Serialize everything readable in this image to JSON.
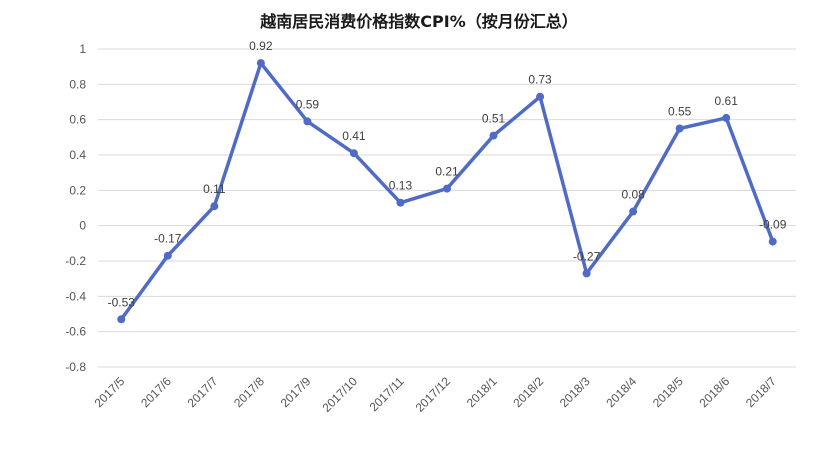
{
  "chart_data": {
    "type": "line",
    "title": "越南居民消费价格指数CPI%（按月份汇总）",
    "categories": [
      "2017/5",
      "2017/6",
      "2017/7",
      "2017/8",
      "2017/9",
      "2017/10",
      "2017/11",
      "2017/12",
      "2018/1",
      "2018/2",
      "2018/3",
      "2018/4",
      "2018/5",
      "2018/6",
      "2018/7"
    ],
    "series": [
      {
        "values": [
          -0.53,
          -0.17,
          0.11,
          0.92,
          0.59,
          0.41,
          0.13,
          0.21,
          0.51,
          0.73,
          -0.27,
          0.08,
          0.55,
          0.61,
          -0.09
        ],
        "labels": [
          "-0.53",
          "-0.17",
          "0.11",
          "0.92",
          "0.59",
          "0.41",
          "0.13",
          "0.21",
          "0.51",
          "0.73",
          "-0.27",
          "0.08",
          "0.55",
          "0.61",
          "-0.09"
        ]
      }
    ],
    "ylim": [
      -0.8,
      1
    ],
    "yticks": [
      "1",
      "0.8",
      "0.6",
      "0.4",
      "0.2",
      "0",
      "-0.2",
      "-0.4",
      "-0.6",
      "-0.8"
    ],
    "ytick_values": [
      1,
      0.8,
      0.6,
      0.4,
      0.2,
      0,
      -0.2,
      -0.4,
      -0.6,
      -0.8
    ],
    "grid": true,
    "line_color": "#4f6bc6",
    "grid_color": "#d9d9d9",
    "xlabel": "",
    "ylabel": ""
  }
}
